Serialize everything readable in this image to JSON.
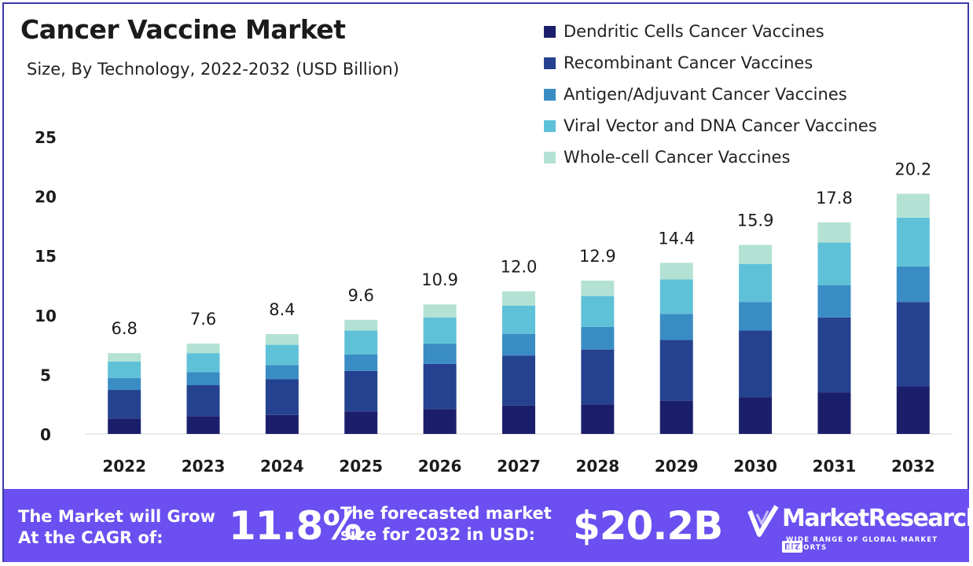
{
  "title": "Cancer Vaccine Market",
  "subtitle": "Size, By Technology, 2022-2032 (USD Billion)",
  "legend": [
    {
      "label": "Dendritic Cells Cancer Vaccines",
      "color": "#1b1f6b"
    },
    {
      "label": "Recombinant Cancer Vaccines",
      "color": "#24428f"
    },
    {
      "label": "Antigen/Adjuvant Cancer Vaccines",
      "color": "#3a8cc4"
    },
    {
      "label": "Viral Vector and DNA Cancer Vaccines",
      "color": "#5fc1d8"
    },
    {
      "label": "Whole-cell Cancer Vaccines",
      "color": "#b3e2d4"
    }
  ],
  "footer": {
    "grow_line1": "The Market will Grow",
    "grow_line2": "At the CAGR of:",
    "cagr": "11.8%",
    "forecast_line1": "The forecasted market",
    "forecast_line2": "size for 2032 in USD:",
    "forecast_value": "$20.2B",
    "logo_name": "MarketResearch",
    "logo_badge": "BIZ",
    "logo_tagline": "WIDE RANGE OF GLOBAL MARKET REPORTS"
  },
  "chart_data": {
    "type": "bar",
    "stacked": true,
    "categories": [
      "2022",
      "2023",
      "2024",
      "2025",
      "2026",
      "2027",
      "2028",
      "2029",
      "2030",
      "2031",
      "2032"
    ],
    "totals": [
      "6.8",
      "7.6",
      "8.4",
      "9.6",
      "10.9",
      "12.0",
      "12.9",
      "14.4",
      "15.9",
      "17.8",
      "20.2"
    ],
    "series": [
      {
        "name": "Dendritic Cells Cancer Vaccines",
        "values": [
          1.3,
          1.5,
          1.6,
          1.9,
          2.1,
          2.4,
          2.5,
          2.8,
          3.1,
          3.5,
          4.0
        ],
        "color": "#1b1f6b"
      },
      {
        "name": "Recombinant Cancer Vaccines",
        "values": [
          2.4,
          2.6,
          3.0,
          3.4,
          3.8,
          4.2,
          4.6,
          5.1,
          5.6,
          6.3,
          7.1
        ],
        "color": "#24428f"
      },
      {
        "name": "Antigen/Adjuvant Cancer Vaccines",
        "values": [
          1.0,
          1.1,
          1.2,
          1.4,
          1.7,
          1.8,
          1.9,
          2.2,
          2.4,
          2.7,
          3.0
        ],
        "color": "#3a8cc4"
      },
      {
        "name": "Viral Vector and DNA Cancer Vaccines",
        "values": [
          1.4,
          1.6,
          1.7,
          2.0,
          2.2,
          2.4,
          2.6,
          2.9,
          3.2,
          3.6,
          4.1
        ],
        "color": "#5fc1d8"
      },
      {
        "name": "Whole-cell Cancer Vaccines",
        "values": [
          0.7,
          0.8,
          0.9,
          0.9,
          1.1,
          1.2,
          1.3,
          1.4,
          1.6,
          1.7,
          2.0
        ],
        "color": "#b3e2d4"
      }
    ],
    "yticks": [
      "0",
      "5",
      "10",
      "15",
      "20",
      "25"
    ],
    "ylim": [
      0,
      25
    ],
    "grid": false
  }
}
